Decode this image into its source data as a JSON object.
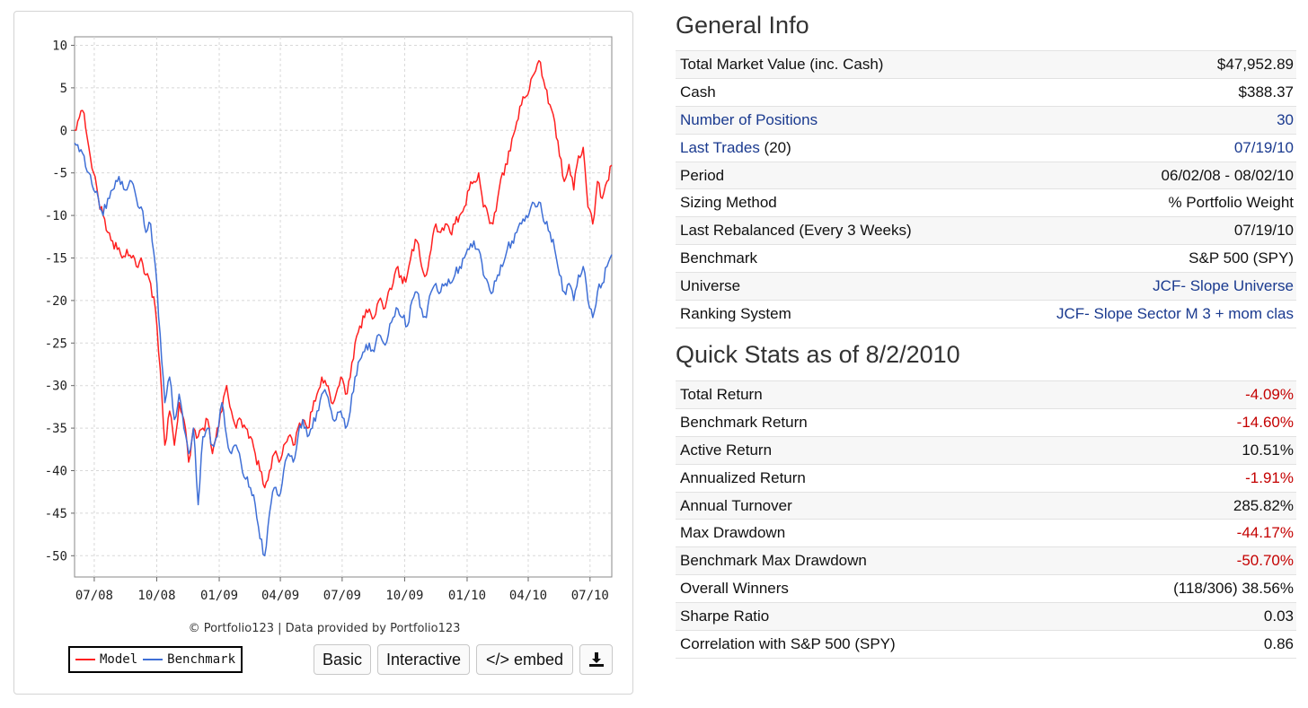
{
  "chart": {
    "credit": "© Portfolio123 | Data provided by Portfolio123",
    "legend": [
      {
        "label": "Model",
        "color": "#ff2020"
      },
      {
        "label": "Benchmark",
        "color": "#3f6fd6"
      }
    ],
    "buttons": {
      "basic": "Basic",
      "interactive": "Interactive",
      "embed": "</> embed",
      "download_icon": "download-icon"
    }
  },
  "chart_data": {
    "type": "line",
    "title": "",
    "xlabel": "",
    "ylabel": "",
    "ylim": [
      -52.5,
      11
    ],
    "yticks": [
      10,
      5,
      0,
      -5,
      -10,
      -15,
      -20,
      -25,
      -30,
      -35,
      -40,
      -45,
      -50
    ],
    "xticks": [
      "07/08",
      "10/08",
      "01/09",
      "04/09",
      "07/09",
      "10/09",
      "01/10",
      "04/10",
      "07/10"
    ],
    "xrange": [
      "2008-06-02",
      "2010-08-02"
    ],
    "grid": true,
    "legend": "bottom-left",
    "series": [
      {
        "name": "Model",
        "color": "#ff2020",
        "points": [
          [
            "2008-06-02",
            0
          ],
          [
            "2008-06-09",
            1.5
          ],
          [
            "2008-06-16",
            2
          ],
          [
            "2008-06-23",
            -2
          ],
          [
            "2008-06-30",
            -5
          ],
          [
            "2008-07-07",
            -8
          ],
          [
            "2008-07-14",
            -10
          ],
          [
            "2008-07-21",
            -12
          ],
          [
            "2008-07-28",
            -13
          ],
          [
            "2008-08-04",
            -14
          ],
          [
            "2008-08-11",
            -15
          ],
          [
            "2008-08-18",
            -14
          ],
          [
            "2008-08-25",
            -15
          ],
          [
            "2008-09-01",
            -16
          ],
          [
            "2008-09-08",
            -15
          ],
          [
            "2008-09-15",
            -17
          ],
          [
            "2008-09-22",
            -18
          ],
          [
            "2008-09-29",
            -21
          ],
          [
            "2008-10-06",
            -28
          ],
          [
            "2008-10-13",
            -37
          ],
          [
            "2008-10-20",
            -33
          ],
          [
            "2008-10-27",
            -37
          ],
          [
            "2008-11-03",
            -32
          ],
          [
            "2008-11-10",
            -34
          ],
          [
            "2008-11-17",
            -39
          ],
          [
            "2008-11-24",
            -35
          ],
          [
            "2008-12-01",
            -36
          ],
          [
            "2008-12-08",
            -35
          ],
          [
            "2008-12-15",
            -34
          ],
          [
            "2008-12-22",
            -38
          ],
          [
            "2008-12-29",
            -35
          ],
          [
            "2009-01-05",
            -33
          ],
          [
            "2009-01-12",
            -30
          ],
          [
            "2009-01-19",
            -33
          ],
          [
            "2009-01-26",
            -35
          ],
          [
            "2009-02-02",
            -34
          ],
          [
            "2009-02-09",
            -35
          ],
          [
            "2009-02-16",
            -36
          ],
          [
            "2009-02-23",
            -38
          ],
          [
            "2009-03-02",
            -40
          ],
          [
            "2009-03-09",
            -42
          ],
          [
            "2009-03-16",
            -40
          ],
          [
            "2009-03-23",
            -38
          ],
          [
            "2009-03-30",
            -39
          ],
          [
            "2009-04-06",
            -37
          ],
          [
            "2009-04-13",
            -36
          ],
          [
            "2009-04-20",
            -37
          ],
          [
            "2009-04-27",
            -35
          ],
          [
            "2009-05-04",
            -34
          ],
          [
            "2009-05-11",
            -35
          ],
          [
            "2009-05-18",
            -33
          ],
          [
            "2009-05-25",
            -31
          ],
          [
            "2009-06-01",
            -29
          ],
          [
            "2009-06-08",
            -30
          ],
          [
            "2009-06-15",
            -32
          ],
          [
            "2009-06-22",
            -31
          ],
          [
            "2009-06-29",
            -29
          ],
          [
            "2009-07-06",
            -31
          ],
          [
            "2009-07-13",
            -29
          ],
          [
            "2009-07-20",
            -25
          ],
          [
            "2009-07-27",
            -23
          ],
          [
            "2009-08-03",
            -22
          ],
          [
            "2009-08-10",
            -21
          ],
          [
            "2009-08-17",
            -22
          ],
          [
            "2009-08-24",
            -20
          ],
          [
            "2009-08-31",
            -21
          ],
          [
            "2009-09-07",
            -19
          ],
          [
            "2009-09-14",
            -18
          ],
          [
            "2009-09-21",
            -16
          ],
          [
            "2009-09-28",
            -18
          ],
          [
            "2009-10-05",
            -17
          ],
          [
            "2009-10-12",
            -14
          ],
          [
            "2009-10-19",
            -13
          ],
          [
            "2009-10-26",
            -16
          ],
          [
            "2009-11-02",
            -17
          ],
          [
            "2009-11-09",
            -14
          ],
          [
            "2009-11-16",
            -11
          ],
          [
            "2009-11-23",
            -12
          ],
          [
            "2009-11-30",
            -11
          ],
          [
            "2009-12-07",
            -12
          ],
          [
            "2009-12-14",
            -11
          ],
          [
            "2009-12-21",
            -10
          ],
          [
            "2009-12-28",
            -9
          ],
          [
            "2010-01-04",
            -7
          ],
          [
            "2010-01-11",
            -6
          ],
          [
            "2010-01-18",
            -5
          ],
          [
            "2010-01-25",
            -9
          ],
          [
            "2010-02-01",
            -10
          ],
          [
            "2010-02-08",
            -11
          ],
          [
            "2010-02-15",
            -8
          ],
          [
            "2010-02-22",
            -5
          ],
          [
            "2010-03-01",
            -4
          ],
          [
            "2010-03-08",
            -1
          ],
          [
            "2010-03-15",
            1
          ],
          [
            "2010-03-22",
            3
          ],
          [
            "2010-03-29",
            4
          ],
          [
            "2010-04-05",
            6
          ],
          [
            "2010-04-12",
            7
          ],
          [
            "2010-04-19",
            8
          ],
          [
            "2010-04-26",
            5
          ],
          [
            "2010-05-03",
            3
          ],
          [
            "2010-05-10",
            1
          ],
          [
            "2010-05-17",
            -3
          ],
          [
            "2010-05-24",
            -6
          ],
          [
            "2010-05-31",
            -4
          ],
          [
            "2010-06-07",
            -7
          ],
          [
            "2010-06-14",
            -3
          ],
          [
            "2010-06-21",
            -2
          ],
          [
            "2010-06-28",
            -9
          ],
          [
            "2010-07-05",
            -11
          ],
          [
            "2010-07-12",
            -6
          ],
          [
            "2010-07-19",
            -8
          ],
          [
            "2010-07-26",
            -6
          ],
          [
            "2010-08-02",
            -4.09
          ]
        ]
      },
      {
        "name": "Benchmark",
        "color": "#3f6fd6",
        "points": [
          [
            "2008-06-02",
            -1.5
          ],
          [
            "2008-06-09",
            -2.5
          ],
          [
            "2008-06-16",
            -3
          ],
          [
            "2008-06-23",
            -5
          ],
          [
            "2008-06-30",
            -7
          ],
          [
            "2008-07-07",
            -8
          ],
          [
            "2008-07-14",
            -10
          ],
          [
            "2008-07-21",
            -8
          ],
          [
            "2008-07-28",
            -7
          ],
          [
            "2008-08-04",
            -6
          ],
          [
            "2008-08-11",
            -6
          ],
          [
            "2008-08-18",
            -7
          ],
          [
            "2008-08-25",
            -6
          ],
          [
            "2008-09-01",
            -8
          ],
          [
            "2008-09-08",
            -9
          ],
          [
            "2008-09-15",
            -12
          ],
          [
            "2008-09-22",
            -11
          ],
          [
            "2008-09-29",
            -16
          ],
          [
            "2008-10-06",
            -24
          ],
          [
            "2008-10-13",
            -32
          ],
          [
            "2008-10-20",
            -29
          ],
          [
            "2008-10-27",
            -34
          ],
          [
            "2008-11-03",
            -31
          ],
          [
            "2008-11-10",
            -35
          ],
          [
            "2008-11-17",
            -38
          ],
          [
            "2008-11-24",
            -35
          ],
          [
            "2008-12-01",
            -44
          ],
          [
            "2008-12-08",
            -36
          ],
          [
            "2008-12-15",
            -35
          ],
          [
            "2008-12-22",
            -37
          ],
          [
            "2008-12-29",
            -36
          ],
          [
            "2009-01-05",
            -32
          ],
          [
            "2009-01-12",
            -36
          ],
          [
            "2009-01-19",
            -38
          ],
          [
            "2009-01-26",
            -37
          ],
          [
            "2009-02-02",
            -39
          ],
          [
            "2009-02-09",
            -41
          ],
          [
            "2009-02-16",
            -42
          ],
          [
            "2009-02-23",
            -44
          ],
          [
            "2009-03-02",
            -48
          ],
          [
            "2009-03-09",
            -50
          ],
          [
            "2009-03-16",
            -45
          ],
          [
            "2009-03-23",
            -42
          ],
          [
            "2009-03-30",
            -43
          ],
          [
            "2009-04-06",
            -40
          ],
          [
            "2009-04-13",
            -38
          ],
          [
            "2009-04-20",
            -39
          ],
          [
            "2009-04-27",
            -36
          ],
          [
            "2009-05-04",
            -34
          ],
          [
            "2009-05-11",
            -36
          ],
          [
            "2009-05-18",
            -35
          ],
          [
            "2009-05-25",
            -33
          ],
          [
            "2009-06-01",
            -31
          ],
          [
            "2009-06-08",
            -31
          ],
          [
            "2009-06-15",
            -33
          ],
          [
            "2009-06-22",
            -34
          ],
          [
            "2009-06-29",
            -33
          ],
          [
            "2009-07-06",
            -35
          ],
          [
            "2009-07-13",
            -33
          ],
          [
            "2009-07-20",
            -29
          ],
          [
            "2009-07-27",
            -27
          ],
          [
            "2009-08-03",
            -26
          ],
          [
            "2009-08-10",
            -25
          ],
          [
            "2009-08-17",
            -26
          ],
          [
            "2009-08-24",
            -24
          ],
          [
            "2009-08-31",
            -25
          ],
          [
            "2009-09-07",
            -24
          ],
          [
            "2009-09-14",
            -22
          ],
          [
            "2009-09-21",
            -21
          ],
          [
            "2009-09-28",
            -22
          ],
          [
            "2009-10-05",
            -23
          ],
          [
            "2009-10-12",
            -20
          ],
          [
            "2009-10-19",
            -19
          ],
          [
            "2009-10-26",
            -21
          ],
          [
            "2009-11-02",
            -22
          ],
          [
            "2009-11-09",
            -19
          ],
          [
            "2009-11-16",
            -18
          ],
          [
            "2009-11-23",
            -19
          ],
          [
            "2009-11-30",
            -18
          ],
          [
            "2009-12-07",
            -18
          ],
          [
            "2009-12-14",
            -17
          ],
          [
            "2009-12-21",
            -16
          ],
          [
            "2009-12-28",
            -15
          ],
          [
            "2010-01-04",
            -14
          ],
          [
            "2010-01-11",
            -13
          ],
          [
            "2010-01-18",
            -14
          ],
          [
            "2010-01-25",
            -17
          ],
          [
            "2010-02-01",
            -18
          ],
          [
            "2010-02-08",
            -19
          ],
          [
            "2010-02-15",
            -17
          ],
          [
            "2010-02-22",
            -16
          ],
          [
            "2010-03-01",
            -14
          ],
          [
            "2010-03-08",
            -13
          ],
          [
            "2010-03-15",
            -12
          ],
          [
            "2010-03-22",
            -11
          ],
          [
            "2010-03-29",
            -10
          ],
          [
            "2010-04-05",
            -9
          ],
          [
            "2010-04-12",
            -9
          ],
          [
            "2010-04-19",
            -8.5
          ],
          [
            "2010-04-26",
            -11
          ],
          [
            "2010-05-03",
            -12
          ],
          [
            "2010-05-10",
            -14
          ],
          [
            "2010-05-17",
            -17
          ],
          [
            "2010-05-24",
            -19
          ],
          [
            "2010-05-31",
            -18
          ],
          [
            "2010-06-07",
            -20
          ],
          [
            "2010-06-14",
            -17
          ],
          [
            "2010-06-21",
            -16
          ],
          [
            "2010-06-28",
            -20
          ],
          [
            "2010-07-05",
            -22
          ],
          [
            "2010-07-12",
            -19
          ],
          [
            "2010-07-19",
            -18
          ],
          [
            "2010-07-26",
            -16
          ],
          [
            "2010-08-02",
            -14.6
          ]
        ]
      }
    ]
  },
  "general_info": {
    "title": "General Info",
    "rows": [
      {
        "label": "Total Market Value (inc. Cash)",
        "value": "$47,952.89"
      },
      {
        "label": "Cash",
        "value": "$388.37"
      },
      {
        "label": "Number of Positions",
        "value": "30"
      },
      {
        "label": "Last Trades",
        "label_suffix": " (20)",
        "value": "07/19/10"
      },
      {
        "label": "Period",
        "value": "06/02/08 - 08/02/10"
      },
      {
        "label": "Sizing Method",
        "value": "% Portfolio Weight"
      },
      {
        "label": "Last Rebalanced (Every 3 Weeks)",
        "value": "07/19/10"
      },
      {
        "label": "Benchmark",
        "value": "S&P 500 (SPY)"
      },
      {
        "label": "Universe",
        "value": "JCF- Slope Universe"
      },
      {
        "label": "Ranking System",
        "value": "JCF- Slope Sector M 3 + mom clas"
      }
    ]
  },
  "quick_stats": {
    "title": "Quick Stats as of 8/2/2010",
    "rows": [
      {
        "label": "Total Return",
        "value": "-4.09%"
      },
      {
        "label": "Benchmark Return",
        "value": "-14.60%"
      },
      {
        "label": "Active Return",
        "value": "10.51%"
      },
      {
        "label": "Annualized Return",
        "value": "-1.91%"
      },
      {
        "label": "Annual Turnover",
        "value": "285.82%"
      },
      {
        "label": "Max Drawdown",
        "value": "-44.17%"
      },
      {
        "label": "Benchmark Max Drawdown",
        "value": "-50.70%"
      },
      {
        "label": "Overall Winners",
        "value": "(118/306) 38.56%"
      },
      {
        "label": "Sharpe Ratio",
        "value": "0.03"
      },
      {
        "label": "Correlation with S&P 500 (SPY)",
        "value": "0.86"
      }
    ]
  },
  "colors": {
    "link": "#1a3a8f",
    "negative": "#c40000"
  }
}
